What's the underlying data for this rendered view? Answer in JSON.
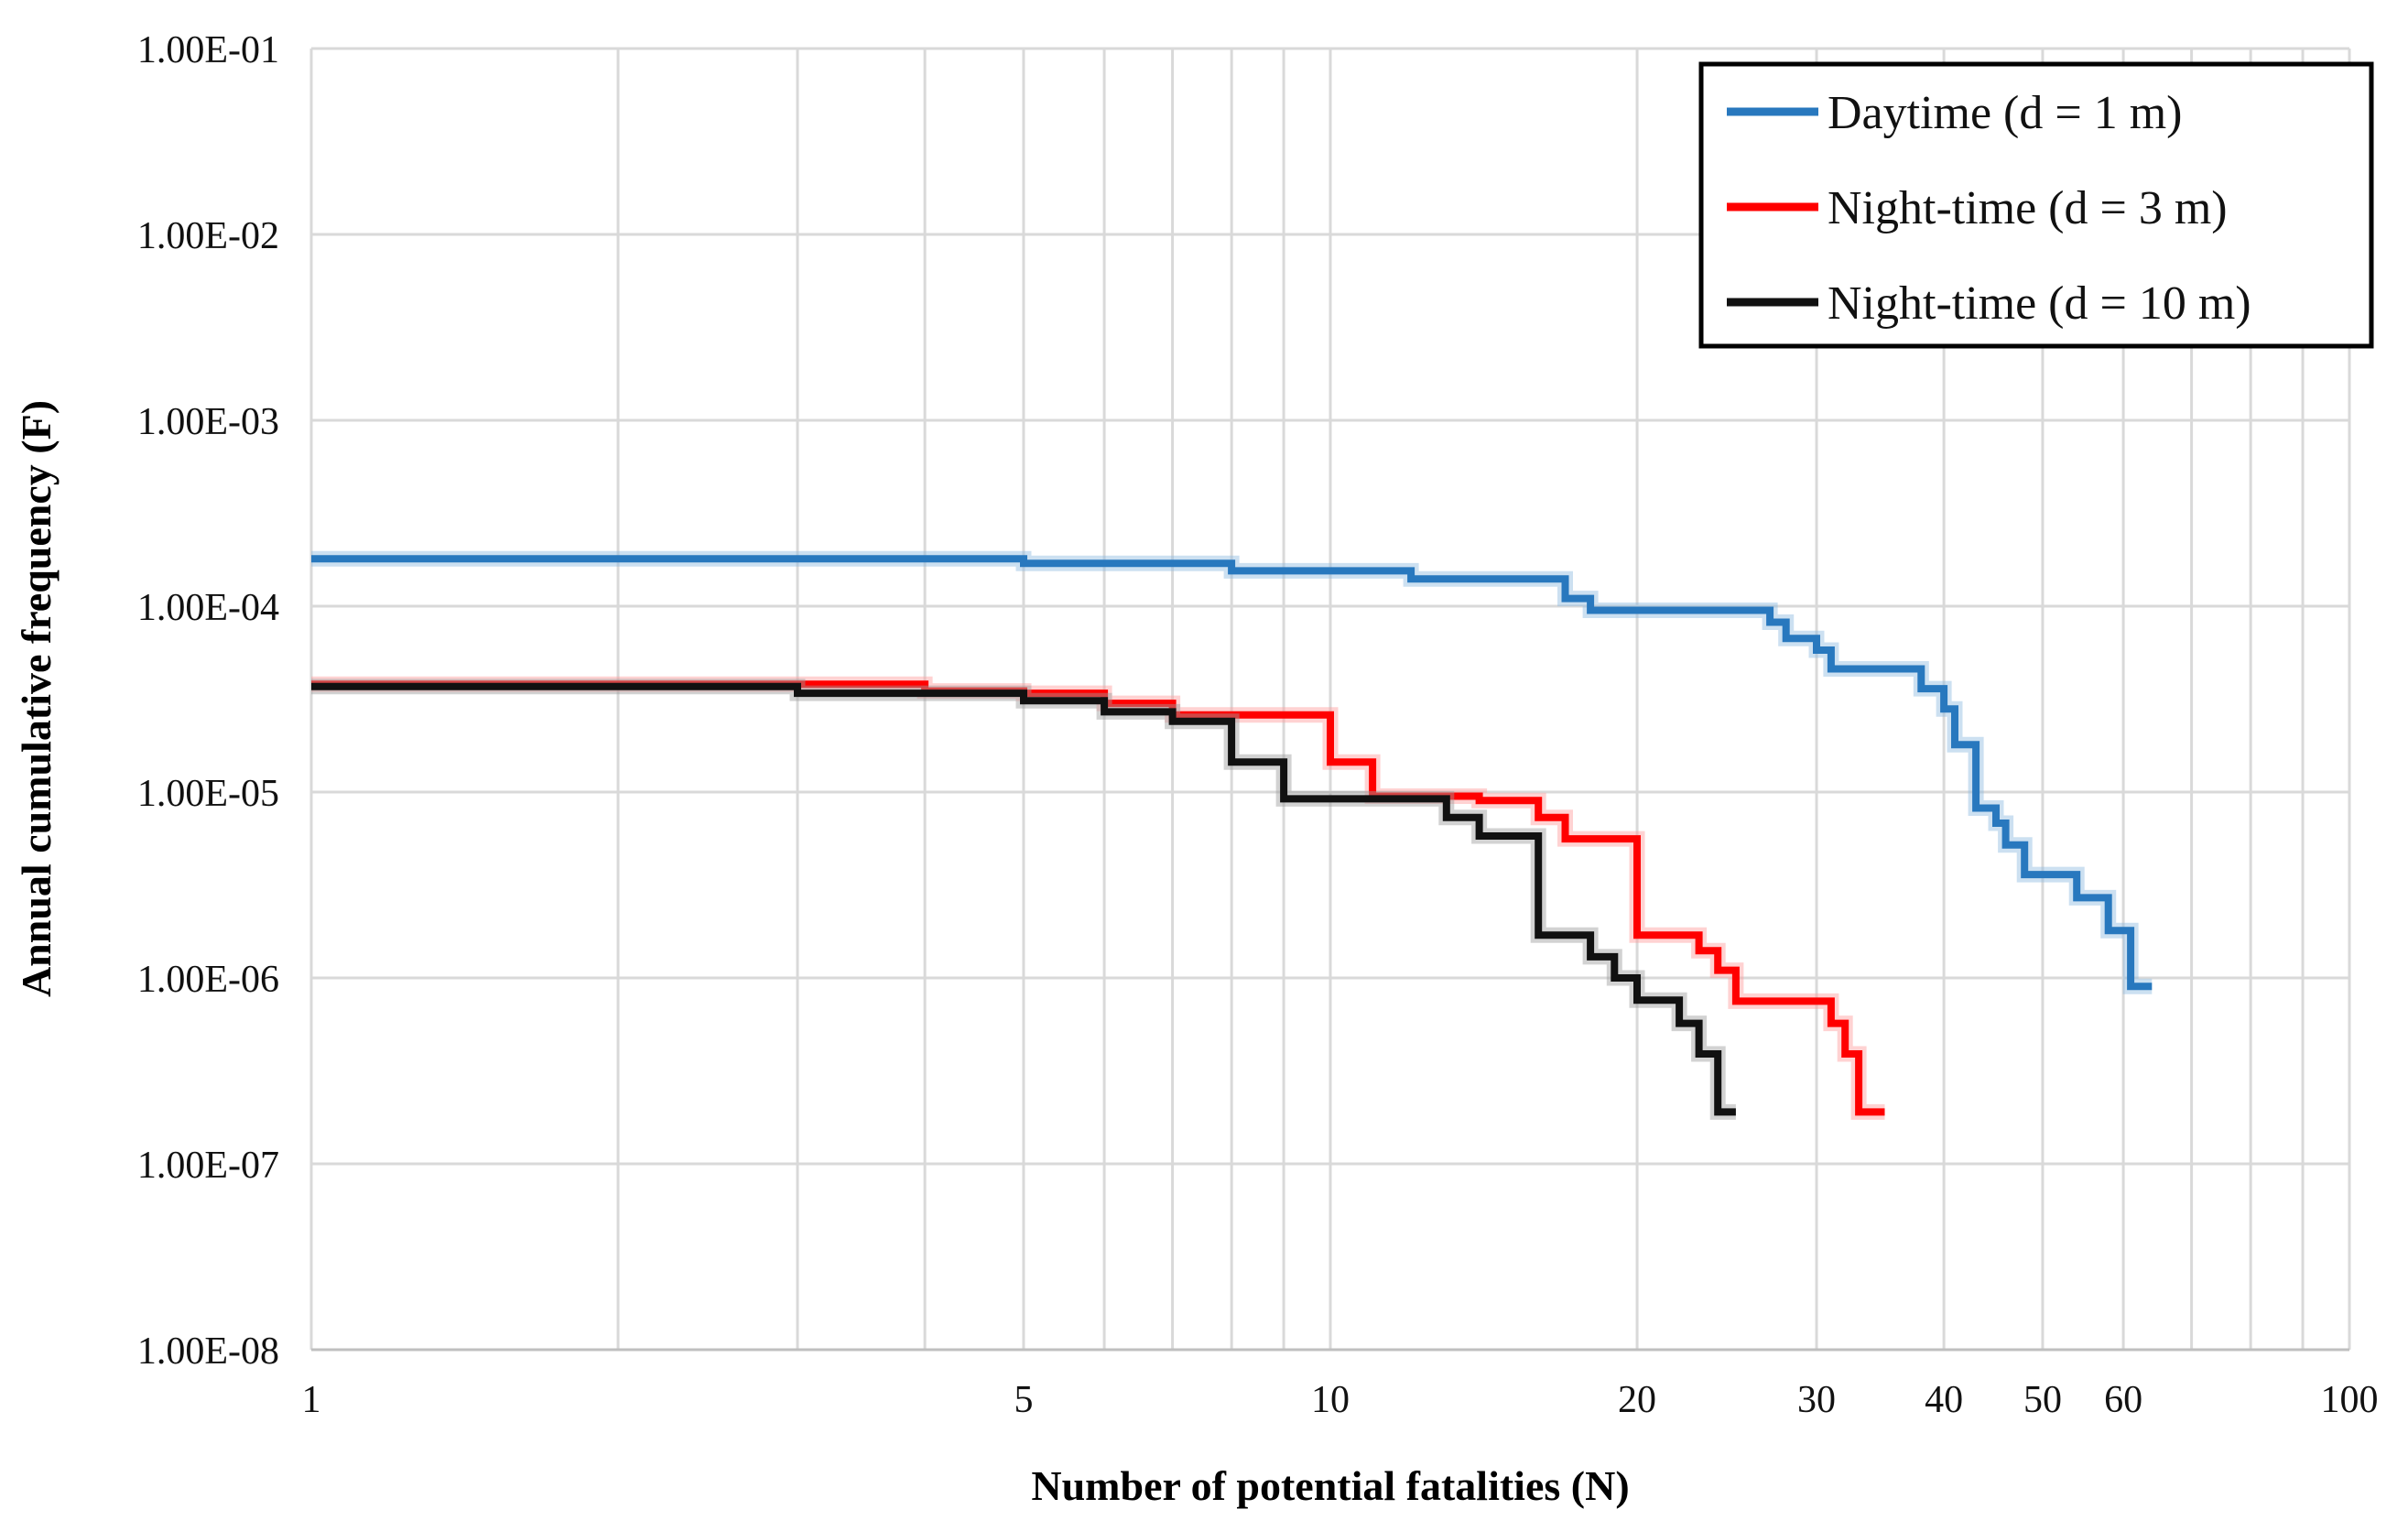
{
  "chart_data": {
    "type": "line",
    "subtype": "step-fn-curve",
    "title": "",
    "xlabel": "Number of potential fatalities (N)",
    "ylabel": "Annual cumulative frequency (F)",
    "x_scale": "log",
    "y_scale": "log",
    "xlim": [
      1,
      100
    ],
    "ylim": [
      1e-08,
      0.1
    ],
    "grid": "on",
    "x_grid_values": [
      1,
      2,
      3,
      4,
      5,
      6,
      7,
      8,
      9,
      10,
      20,
      30,
      40,
      50,
      60,
      70,
      80,
      90,
      100
    ],
    "x_tick_values": [
      1,
      5,
      10,
      20,
      30,
      40,
      50,
      60,
      100
    ],
    "x_tick_labels": [
      "1",
      "5",
      "10",
      "20",
      "30",
      "40",
      "50",
      "60",
      "100"
    ],
    "y_tick_values": [
      0.1,
      0.01,
      0.001,
      0.0001,
      1e-05,
      1e-06,
      1e-07,
      1e-08
    ],
    "y_tick_labels": [
      "1.00E-01",
      "1.00E-02",
      "1.00E-03",
      "1.00E-04",
      "1.00E-05",
      "1.00E-06",
      "1.00E-07",
      "1.00E-08"
    ],
    "legend_position": "top-right",
    "series": [
      {
        "name": "Daytime (d = 1 m)",
        "color": "#2878BE",
        "halo_color": "#8FBBDF",
        "end_n": 64,
        "points": [
          [
            1,
            0.00018
          ],
          [
            5,
            0.00017
          ],
          [
            8,
            0.000155
          ],
          [
            12,
            0.00014
          ],
          [
            17,
            0.00011
          ],
          [
            18,
            9.5e-05
          ],
          [
            27,
            8.2e-05
          ],
          [
            28,
            6.7e-05
          ],
          [
            30,
            5.8e-05
          ],
          [
            31,
            4.6e-05
          ],
          [
            38,
            3.6e-05
          ],
          [
            40,
            2.8e-05
          ],
          [
            41,
            1.8e-05
          ],
          [
            43,
            8.2e-06
          ],
          [
            45,
            6.8e-06
          ],
          [
            46,
            5.2e-06
          ],
          [
            48,
            3.6e-06
          ],
          [
            54,
            2.7e-06
          ],
          [
            58,
            1.8e-06
          ],
          [
            61,
            9e-07
          ]
        ]
      },
      {
        "name": "Night-time (d = 3 m)",
        "color": "#FF0000",
        "halo_color": "#FF9C9C",
        "end_n": 35,
        "points": [
          [
            1,
            3.8e-05
          ],
          [
            4,
            3.5e-05
          ],
          [
            5,
            3.4e-05
          ],
          [
            6,
            3e-05
          ],
          [
            7,
            2.6e-05
          ],
          [
            10,
            1.45e-05
          ],
          [
            11,
            9.5e-06
          ],
          [
            14,
            9e-06
          ],
          [
            16,
            7.3e-06
          ],
          [
            17,
            5.6e-06
          ],
          [
            20,
            1.7e-06
          ],
          [
            23,
            1.4e-06
          ],
          [
            24,
            1.1e-06
          ],
          [
            25,
            7.5e-07
          ],
          [
            31,
            5.7e-07
          ],
          [
            32,
            3.9e-07
          ],
          [
            33,
            1.9e-07
          ]
        ]
      },
      {
        "name": "Night-time (d = 10 m)",
        "color": "#111111",
        "halo_color": "#9B9B9B",
        "end_n": 25,
        "points": [
          [
            1,
            3.7e-05
          ],
          [
            3,
            3.4e-05
          ],
          [
            5,
            3.1e-05
          ],
          [
            6,
            2.7e-05
          ],
          [
            7,
            2.4e-05
          ],
          [
            8,
            1.45e-05
          ],
          [
            9,
            9.2e-06
          ],
          [
            13,
            7.3e-06
          ],
          [
            14,
            5.8e-06
          ],
          [
            16,
            1.7e-06
          ],
          [
            18,
            1.3e-06
          ],
          [
            19,
            1e-06
          ],
          [
            20,
            7.6e-07
          ],
          [
            22,
            5.7e-07
          ],
          [
            23,
            3.9e-07
          ],
          [
            24,
            1.9e-07
          ]
        ]
      }
    ]
  },
  "legend": {
    "entries": [
      {
        "label": "Daytime (d = 1 m)",
        "color": "#2878BE"
      },
      {
        "label": "Night-time (d = 3 m)",
        "color": "#FF0000"
      },
      {
        "label": "Night-time (d = 10 m)",
        "color": "#111111"
      }
    ]
  },
  "colors": {
    "grid": "#d9d9d9",
    "axis": "#bfbfbf",
    "background": "#ffffff",
    "text": "#111111"
  }
}
